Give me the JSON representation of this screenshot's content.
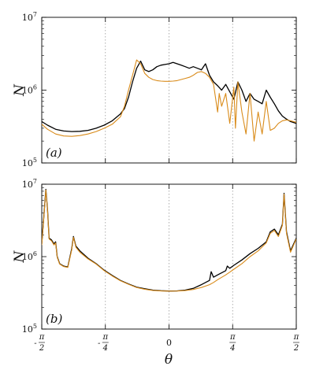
{
  "chart_data": [
    {
      "type": "line",
      "panel_label": "(a)",
      "xlabel": "θ",
      "ylabel": "N",
      "yscale": "log",
      "xlim": [
        -1.5708,
        1.5708
      ],
      "ylim": [
        100000,
        10000000
      ],
      "y_ticks": [
        {
          "value": 100000,
          "base": "10",
          "exp": "5"
        },
        {
          "value": 1000000,
          "base": "10",
          "exp": "6"
        },
        {
          "value": 10000000,
          "base": "10",
          "exp": "7"
        }
      ],
      "vgrid_at": [
        -0.7854,
        0,
        0.7854
      ],
      "series": [
        {
          "color": "#000000",
          "x": [
            -1.5708,
            -1.5,
            -1.4,
            -1.3,
            -1.2,
            -1.1,
            -1.0,
            -0.9,
            -0.8,
            -0.7,
            -0.6,
            -0.55,
            -0.5,
            -0.45,
            -0.4,
            -0.35,
            -0.3,
            -0.25,
            -0.2,
            -0.15,
            -0.1,
            -0.05,
            0.0,
            0.05,
            0.1,
            0.15,
            0.2,
            0.25,
            0.3,
            0.35,
            0.4,
            0.45,
            0.5,
            0.55,
            0.6,
            0.65,
            0.7,
            0.75,
            0.8,
            0.85,
            0.9,
            0.95,
            1.0,
            1.05,
            1.1,
            1.15,
            1.2,
            1.25,
            1.3,
            1.35,
            1.4,
            1.45,
            1.5,
            1.5708
          ],
          "y": [
            370000,
            330000,
            290000,
            275000,
            270000,
            272000,
            280000,
            300000,
            330000,
            380000,
            470000,
            560000,
            800000,
            1300000,
            2000000,
            2500000,
            1900000,
            1800000,
            1900000,
            2100000,
            2200000,
            2250000,
            2300000,
            2400000,
            2300000,
            2200000,
            2100000,
            2000000,
            2100000,
            2000000,
            1900000,
            2300000,
            1600000,
            1300000,
            1150000,
            1000000,
            1200000,
            950000,
            750000,
            1300000,
            1000000,
            700000,
            900000,
            750000,
            700000,
            650000,
            1000000,
            800000,
            650000,
            520000,
            440000,
            400000,
            370000,
            350000
          ]
        },
        {
          "color": "#d98b1a",
          "x": [
            -1.5708,
            -1.5,
            -1.4,
            -1.3,
            -1.2,
            -1.1,
            -1.0,
            -0.9,
            -0.8,
            -0.7,
            -0.6,
            -0.55,
            -0.5,
            -0.45,
            -0.4,
            -0.35,
            -0.3,
            -0.25,
            -0.2,
            -0.15,
            -0.1,
            -0.05,
            0.0,
            0.05,
            0.1,
            0.15,
            0.2,
            0.25,
            0.3,
            0.35,
            0.4,
            0.45,
            0.5,
            0.55,
            0.6,
            0.62,
            0.65,
            0.7,
            0.75,
            0.8,
            0.82,
            0.85,
            0.9,
            0.95,
            1.0,
            1.05,
            1.1,
            1.15,
            1.2,
            1.25,
            1.3,
            1.35,
            1.4,
            1.45,
            1.5,
            1.5708
          ],
          "y": [
            340000,
            290000,
            250000,
            235000,
            232000,
            238000,
            250000,
            270000,
            300000,
            340000,
            430000,
            600000,
            1000000,
            1600000,
            2600000,
            2300000,
            1700000,
            1500000,
            1400000,
            1350000,
            1330000,
            1320000,
            1320000,
            1330000,
            1350000,
            1400000,
            1450000,
            1500000,
            1600000,
            1750000,
            1800000,
            1700000,
            1500000,
            1200000,
            500000,
            900000,
            600000,
            900000,
            350000,
            1100000,
            300000,
            1300000,
            500000,
            250000,
            900000,
            200000,
            500000,
            250000,
            700000,
            280000,
            300000,
            350000,
            380000,
            390000,
            380000,
            360000
          ]
        }
      ]
    },
    {
      "type": "line",
      "panel_label": "(b)",
      "xlabel": "θ",
      "ylabel": "N",
      "yscale": "log",
      "xlim": [
        -1.5708,
        1.5708
      ],
      "ylim": [
        100000,
        10000000
      ],
      "y_ticks": [
        {
          "value": 100000,
          "base": "10",
          "exp": "5"
        },
        {
          "value": 1000000,
          "base": "10",
          "exp": "6"
        },
        {
          "value": 10000000,
          "base": "10",
          "exp": "7"
        }
      ],
      "vgrid_at": [
        -0.7854,
        0,
        0.7854
      ],
      "series": [
        {
          "color": "#000000",
          "x": [
            -1.5708,
            -1.55,
            -1.52,
            -1.5,
            -1.48,
            -1.45,
            -1.42,
            -1.4,
            -1.38,
            -1.35,
            -1.3,
            -1.25,
            -1.2,
            -1.18,
            -1.15,
            -1.1,
            -1.0,
            -0.9,
            -0.8,
            -0.7,
            -0.6,
            -0.5,
            -0.4,
            -0.3,
            -0.2,
            -0.1,
            0.0,
            0.1,
            0.2,
            0.3,
            0.4,
            0.5,
            0.52,
            0.55,
            0.6,
            0.7,
            0.72,
            0.75,
            0.8,
            0.9,
            1.0,
            1.1,
            1.2,
            1.25,
            1.3,
            1.35,
            1.4,
            1.42,
            1.45,
            1.5,
            1.5708
          ],
          "y": [
            1500000,
            3000000,
            8500000,
            4500000,
            1800000,
            1700000,
            1500000,
            1600000,
            1000000,
            800000,
            740000,
            720000,
            1300000,
            1900000,
            1400000,
            1200000,
            950000,
            800000,
            650000,
            550000,
            470000,
            420000,
            380000,
            360000,
            345000,
            338000,
            335000,
            337000,
            345000,
            365000,
            410000,
            470000,
            620000,
            520000,
            560000,
            640000,
            740000,
            690000,
            760000,
            900000,
            1100000,
            1300000,
            1600000,
            2200000,
            2400000,
            2000000,
            2800000,
            7500000,
            2200000,
            1200000,
            1800000
          ]
        },
        {
          "color": "#d98b1a",
          "x": [
            -1.5708,
            -1.55,
            -1.52,
            -1.5,
            -1.48,
            -1.45,
            -1.42,
            -1.4,
            -1.38,
            -1.35,
            -1.3,
            -1.25,
            -1.2,
            -1.18,
            -1.15,
            -1.1,
            -1.0,
            -0.9,
            -0.8,
            -0.7,
            -0.6,
            -0.5,
            -0.4,
            -0.3,
            -0.2,
            -0.1,
            0.0,
            0.1,
            0.2,
            0.3,
            0.4,
            0.5,
            0.55,
            0.6,
            0.7,
            0.75,
            0.8,
            0.9,
            1.0,
            1.1,
            1.2,
            1.25,
            1.3,
            1.35,
            1.4,
            1.42,
            1.45,
            1.5,
            1.5708
          ],
          "y": [
            1450000,
            2900000,
            8300000,
            4400000,
            1750000,
            1650000,
            1450000,
            1550000,
            980000,
            790000,
            730000,
            710000,
            1250000,
            1850000,
            1350000,
            1150000,
            930000,
            790000,
            640000,
            540000,
            465000,
            415000,
            375000,
            355000,
            342000,
            336000,
            334000,
            335000,
            340000,
            352000,
            375000,
            410000,
            440000,
            480000,
            560000,
            610000,
            670000,
            800000,
            1000000,
            1200000,
            1550000,
            2100000,
            2300000,
            1900000,
            2700000,
            7300000,
            2100000,
            1150000,
            1750000
          ]
        }
      ]
    }
  ],
  "xaxis": {
    "ticks": [
      {
        "value": -1.5708,
        "sign": "-",
        "num": "π",
        "den": "2"
      },
      {
        "value": -0.7854,
        "sign": "-",
        "num": "π",
        "den": "4"
      },
      {
        "value": 0,
        "sign": "",
        "num": "",
        "den": "",
        "plain": "0"
      },
      {
        "value": 0.7854,
        "sign": "",
        "num": "π",
        "den": "4"
      },
      {
        "value": 1.5708,
        "sign": "",
        "num": "π",
        "den": "2"
      }
    ]
  }
}
